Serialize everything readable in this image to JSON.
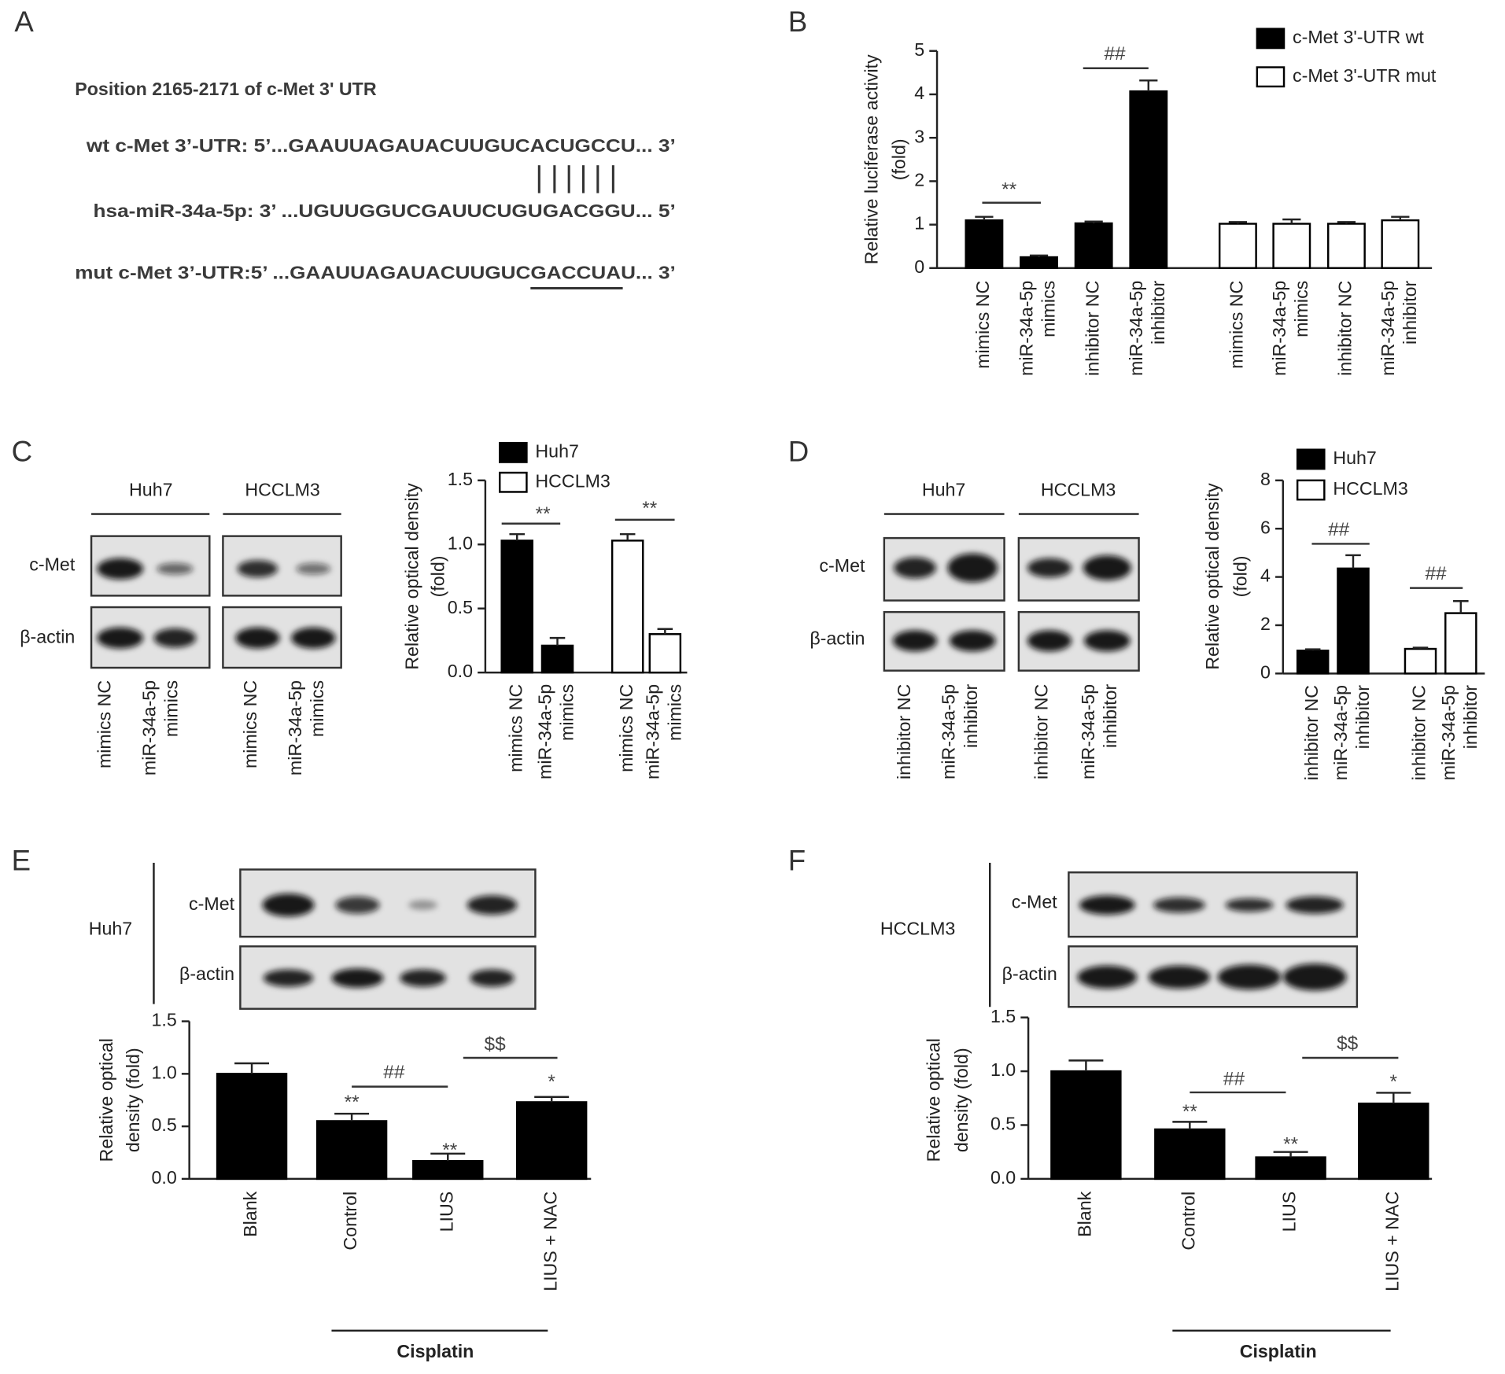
{
  "panels": [
    "A",
    "B",
    "C",
    "D",
    "E",
    "F"
  ],
  "panel_a": {
    "title": "Position 2165-2171 of c-Met 3' UTR",
    "lines": [
      "wt c-Met 3’-UTR: 5’...GAAUUAGAUACUUGUCACUGCCU... 3’",
      "hsa-miR-34a-5p: 3’ ...UGUUGGUCGAUUCUGUGACGGU... 5’",
      "mut c-Met 3’-UTR:5’ ...GAAUUAGAUACUUGUCGACCUAU... 3’"
    ]
  },
  "blots": [
    {
      "cells": [
        "Huh7",
        "HCCLM3"
      ],
      "rows": [
        "c-Met",
        "β-actin"
      ],
      "lanes": [
        [
          "mimics NC"
        ],
        [
          "miR-34a-5p",
          "mimics"
        ],
        [
          "mimics NC"
        ],
        [
          "miR-34a-5p",
          "mimics"
        ]
      ]
    },
    {
      "cells": [
        "Huh7",
        "HCCLM3"
      ],
      "rows": [
        "c-Met",
        "β-actin"
      ],
      "lanes": [
        [
          "inhibitor NC"
        ],
        [
          "miR-34a-5p",
          "inhibitor"
        ],
        [
          "inhibitor NC"
        ],
        [
          "miR-34a-5p",
          "inhibitor"
        ]
      ]
    },
    {
      "cells": [
        "Huh7"
      ],
      "rows": [
        "c-Met",
        "β-actin"
      ]
    },
    {
      "cells": [
        "HCCLM3"
      ],
      "rows": [
        "c-Met",
        "β-actin"
      ]
    }
  ],
  "chart_data": [
    {
      "type": "bar",
      "ylabel": [
        "Relative luciferase activity",
        "(fold)"
      ],
      "categories": [
        [
          "mimics NC"
        ],
        [
          "miR-34a-5p",
          "mimics"
        ],
        [
          "inhibitor NC"
        ],
        [
          "miR-34a-5p",
          "inhibitor"
        ],
        [
          "mimics NC"
        ],
        [
          "miR-34a-5p",
          "mimics"
        ],
        [
          "inhibitor NC"
        ],
        [
          "miR-34a-5p",
          "inhibitor"
        ]
      ],
      "series": [
        {
          "name": "c-Met 3'-UTR wt",
          "color": "#000000",
          "values": [
            1.1,
            0.25,
            1.03,
            4.07,
            null,
            null,
            null,
            null
          ],
          "errors": [
            0.08,
            0.04,
            0.04,
            0.25,
            null,
            null,
            null,
            null
          ]
        },
        {
          "name": "c-Met 3'-UTR mut",
          "color": "#ffffff",
          "values": [
            null,
            null,
            null,
            null,
            1.02,
            1.02,
            1.02,
            1.1
          ],
          "errors": [
            null,
            null,
            null,
            null,
            0.04,
            0.1,
            0.04,
            0.08
          ]
        }
      ],
      "ylim": [
        0,
        5
      ],
      "yticks": [
        0,
        1,
        2,
        3,
        4,
        5
      ],
      "annotations": [
        "**",
        "##"
      ]
    },
    {
      "type": "bar",
      "ylabel": [
        "Relative optical density",
        "(fold)"
      ],
      "categories": [
        [
          "mimics NC"
        ],
        [
          "miR-34a-5p",
          "mimics"
        ],
        [
          "mimics NC"
        ],
        [
          "miR-34a-5p",
          "mimics"
        ]
      ],
      "series": [
        {
          "name": "Huh7",
          "color": "#000000",
          "values": [
            1.03,
            0.21,
            null,
            null
          ],
          "errors": [
            0.05,
            0.06,
            null,
            null
          ]
        },
        {
          "name": "HCCLM3",
          "color": "#ffffff",
          "values": [
            null,
            null,
            1.03,
            0.3
          ],
          "errors": [
            null,
            null,
            0.05,
            0.04
          ]
        }
      ],
      "ylim": [
        0,
        1.5
      ],
      "yticks": [
        {
          "value": 0,
          "label": "0.0"
        },
        0.5,
        {
          "value": 1,
          "label": "1.0"
        },
        1.5
      ],
      "annotations": [
        "**",
        "**"
      ]
    },
    {
      "type": "bar",
      "ylabel": [
        "Relative optical density",
        "(fold)"
      ],
      "categories": [
        [
          "inhibitor NC"
        ],
        [
          "miR-34a-5p",
          "inhibitor"
        ],
        [
          "inhibitor NC"
        ],
        [
          "miR-34a-5p",
          "inhibitor"
        ]
      ],
      "series": [
        {
          "name": "Huh7",
          "color": "#000000",
          "values": [
            0.95,
            4.35,
            null,
            null
          ],
          "errors": [
            0.05,
            0.55,
            null,
            null
          ]
        },
        {
          "name": "HCCLM3",
          "color": "#ffffff",
          "values": [
            null,
            null,
            1.02,
            2.5
          ],
          "errors": [
            null,
            null,
            0.05,
            0.5
          ]
        }
      ],
      "ylim": [
        0,
        8
      ],
      "yticks": [
        0,
        2,
        4,
        6,
        8
      ],
      "annotations": [
        "##",
        "##"
      ]
    },
    {
      "type": "bar",
      "ylabel": [
        "Relative optical",
        "density (fold)"
      ],
      "categories": [
        [
          "Blank"
        ],
        [
          "Control"
        ],
        [
          "LIUS"
        ],
        [
          "LIUS + NAC"
        ]
      ],
      "series": [
        {
          "color": "#000000",
          "values": [
            1.0,
            0.55,
            0.17,
            0.73
          ],
          "errors": [
            0.1,
            0.07,
            0.07,
            0.05
          ]
        }
      ],
      "ylim": [
        0,
        1.5
      ],
      "yticks": [
        {
          "value": 0,
          "label": "0.0"
        },
        0.5,
        {
          "value": 1,
          "label": "1.0"
        },
        1.5
      ],
      "annotations": [
        "**",
        "**",
        "*",
        "##",
        "$$"
      ],
      "group_label": "Cisplatin"
    },
    {
      "type": "bar",
      "ylabel": [
        "Relative optical",
        "density (fold)"
      ],
      "categories": [
        [
          "Blank"
        ],
        [
          "Control"
        ],
        [
          "LIUS"
        ],
        [
          "LIUS + NAC"
        ]
      ],
      "series": [
        {
          "color": "#000000",
          "values": [
            1.0,
            0.46,
            0.2,
            0.7
          ],
          "errors": [
            0.1,
            0.07,
            0.05,
            0.1
          ]
        }
      ],
      "ylim": [
        0,
        1.5
      ],
      "yticks": [
        {
          "value": 0,
          "label": "0.0"
        },
        0.5,
        {
          "value": 1,
          "label": "1.0"
        },
        1.5
      ],
      "annotations": [
        "**",
        "**",
        "*",
        "##",
        "$$"
      ],
      "group_label": "Cisplatin"
    }
  ]
}
